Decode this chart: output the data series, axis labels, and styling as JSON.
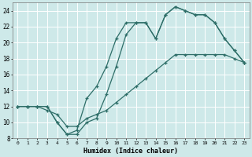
{
  "xlabel": "Humidex (Indice chaleur)",
  "bg_color": "#cee9e9",
  "grid_color": "#ffffff",
  "line_color": "#2e6e68",
  "xlim": [
    -0.5,
    23.5
  ],
  "ylim": [
    8,
    25
  ],
  "xticks": [
    0,
    1,
    2,
    3,
    4,
    5,
    6,
    7,
    8,
    9,
    10,
    11,
    12,
    13,
    14,
    15,
    16,
    17,
    18,
    19,
    20,
    21,
    22,
    23
  ],
  "yticks": [
    8,
    10,
    12,
    14,
    16,
    18,
    20,
    22,
    24
  ],
  "line1_x": [
    0,
    1,
    2,
    3,
    4,
    5,
    6,
    7,
    8,
    9,
    10,
    11,
    12,
    13,
    14,
    15,
    16,
    17,
    18,
    19,
    20,
    21,
    22,
    23
  ],
  "line1_y": [
    12,
    12,
    12,
    12,
    10,
    8.5,
    8.5,
    10.0,
    10.5,
    13.5,
    17.0,
    21.0,
    22.5,
    22.5,
    20.5,
    23.5,
    24.5,
    24.0,
    23.5,
    23.5,
    22.5,
    20.5,
    19.0,
    17.5
  ],
  "line2_x": [
    0,
    1,
    2,
    3,
    4,
    5,
    6,
    7,
    8,
    9,
    10,
    11,
    12,
    13,
    14,
    15,
    16,
    17,
    18,
    19,
    20,
    21,
    22,
    23
  ],
  "line2_y": [
    12,
    12,
    12,
    12,
    10,
    8.5,
    9.0,
    13.0,
    14.5,
    17.0,
    20.5,
    22.5,
    22.5,
    22.5,
    20.5,
    23.5,
    24.5,
    24.0,
    23.5,
    23.5,
    22.5,
    20.5,
    19.0,
    17.5
  ],
  "line3_x": [
    0,
    1,
    2,
    3,
    4,
    5,
    6,
    7,
    8,
    9,
    10,
    11,
    12,
    13,
    14,
    15,
    16,
    17,
    18,
    19,
    20,
    21,
    22,
    23
  ],
  "line3_y": [
    12,
    12,
    12,
    11.5,
    11.0,
    9.5,
    9.5,
    10.5,
    11.0,
    11.5,
    12.5,
    13.5,
    14.5,
    15.5,
    16.5,
    17.5,
    18.5,
    18.5,
    18.5,
    18.5,
    18.5,
    18.5,
    18.0,
    17.5
  ]
}
